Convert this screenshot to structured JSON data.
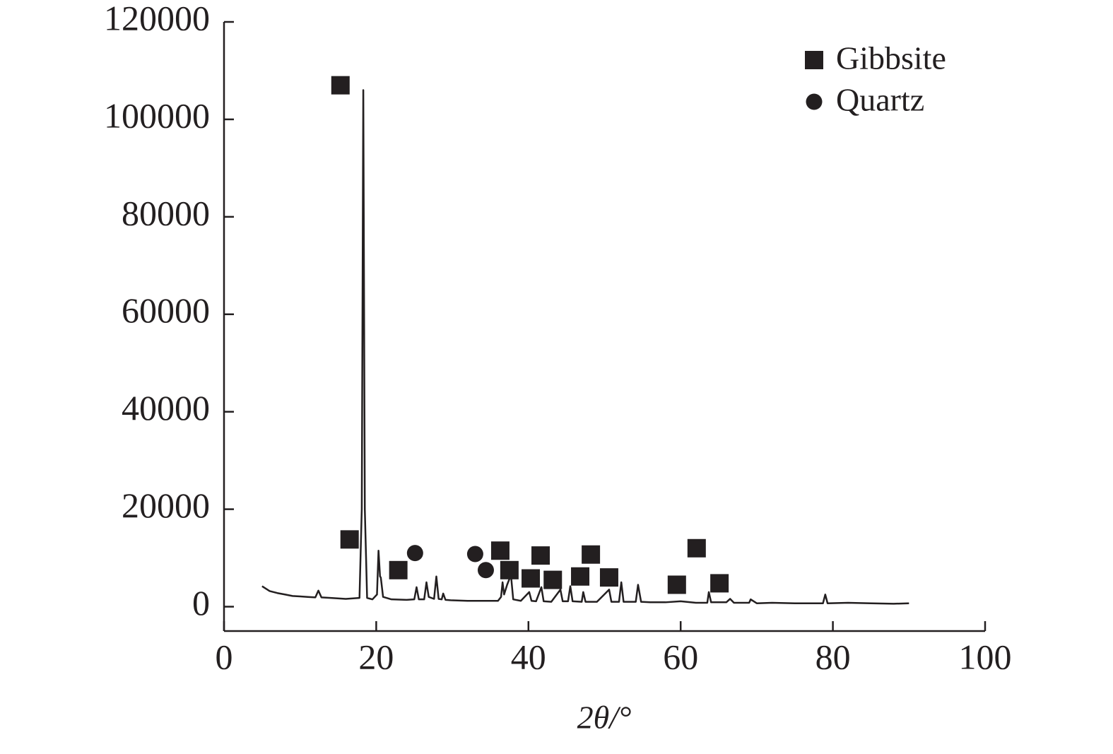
{
  "chart_data": {
    "type": "line",
    "xlabel": "2θ/°",
    "color": "#231f20",
    "x": [
      5,
      6,
      7,
      8,
      9,
      10,
      11,
      12,
      12.4,
      12.8,
      14,
      16,
      17.8,
      18.1,
      18.3,
      18.5,
      18.8,
      19.5,
      20.1,
      20.3,
      20.5,
      20.6,
      20.9,
      22,
      24,
      25,
      25.3,
      25.6,
      26.3,
      26.6,
      26.9,
      27.6,
      27.9,
      28.2,
      28.6,
      28.8,
      29.1,
      30,
      32,
      34,
      36,
      36.4,
      36.6,
      36.8,
      37.2,
      37.7,
      38,
      39,
      40.1,
      40.4,
      41,
      41.7,
      42,
      43,
      44.2,
      44.5,
      45.2,
      45.5,
      45.8,
      47,
      47.2,
      47.5,
      49,
      50.6,
      50.9,
      51.9,
      52.2,
      52.5,
      54.1,
      54.4,
      54.8,
      56,
      58,
      60,
      62,
      63.5,
      63.7,
      64,
      66,
      66.5,
      67,
      69,
      69.2,
      70,
      72,
      75,
      78.7,
      79,
      79.3,
      82,
      85,
      88,
      90
    ],
    "values": [
      4200,
      3200,
      2800,
      2500,
      2200,
      2100,
      2000,
      1900,
      3300,
      1900,
      1800,
      1600,
      1800,
      20000,
      106000,
      20000,
      1800,
      1500,
      2500,
      11500,
      6200,
      6000,
      2000,
      1500,
      1400,
      1500,
      4000,
      1500,
      1500,
      5000,
      2000,
      1600,
      6200,
      1600,
      1500,
      2700,
      1400,
      1300,
      1200,
      1200,
      1200,
      2000,
      5000,
      2500,
      4500,
      6500,
      1500,
      1200,
      3000,
      1200,
      1100,
      4000,
      1100,
      1000,
      3500,
      1100,
      1100,
      4200,
      1100,
      1000,
      3000,
      1000,
      1000,
      3500,
      1000,
      1000,
      5000,
      1000,
      1000,
      4500,
      1000,
      900,
      900,
      1100,
      800,
      800,
      3000,
      900,
      900,
      1600,
      800,
      800,
      1500,
      700,
      800,
      700,
      700,
      2500,
      700,
      800,
      700,
      600,
      700
    ],
    "markers": [
      {
        "name": "Gibbsite",
        "marker": "square",
        "color": "#231f20",
        "x": [
          15.3,
          16.5,
          22.9,
          36.3,
          37.5,
          40.3,
          41.6,
          43.2,
          46.8,
          48.2,
          50.6,
          59.5,
          62.1,
          65.1
        ],
        "values": [
          107000,
          13800,
          7500,
          11500,
          7500,
          5800,
          10500,
          5500,
          6200,
          10700,
          6000,
          4500,
          12000,
          4800
        ]
      },
      {
        "name": "Quartz",
        "marker": "circle",
        "color": "#231f20",
        "x": [
          25.1,
          33,
          34.4
        ],
        "values": [
          11000,
          10800,
          7500
        ]
      }
    ],
    "xlim": [
      0,
      100
    ],
    "xticks": [
      0,
      20,
      40,
      60,
      80,
      100
    ],
    "ylim": [
      -5000,
      120000
    ],
    "yticks": [
      0,
      20000,
      40000,
      60000,
      80000,
      100000,
      120000
    ],
    "legend": "upper right"
  }
}
